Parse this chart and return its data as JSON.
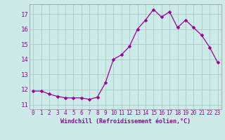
{
  "x": [
    0,
    1,
    2,
    3,
    4,
    5,
    6,
    7,
    8,
    9,
    10,
    11,
    12,
    13,
    14,
    15,
    16,
    17,
    18,
    19,
    20,
    21,
    22,
    23
  ],
  "y": [
    11.9,
    11.9,
    11.7,
    11.55,
    11.45,
    11.45,
    11.45,
    11.35,
    11.5,
    12.45,
    14.0,
    14.3,
    14.85,
    16.0,
    16.6,
    17.3,
    16.8,
    17.15,
    16.1,
    16.6,
    16.1,
    15.6,
    14.8,
    13.8
  ],
  "line_color": "#990099",
  "marker": "D",
  "markersize": 2.5,
  "bg_color": "#cceae7",
  "grid_color": "#aacccc",
  "ylabel_ticks": [
    11,
    12,
    13,
    14,
    15,
    16,
    17
  ],
  "xtick_labels": [
    "0",
    "1",
    "2",
    "3",
    "4",
    "5",
    "6",
    "7",
    "8",
    "9",
    "10",
    "11",
    "12",
    "13",
    "14",
    "15",
    "16",
    "17",
    "18",
    "19",
    "20",
    "21",
    "22",
    "23"
  ],
  "ylim": [
    10.7,
    17.65
  ],
  "xlim": [
    -0.5,
    23.5
  ],
  "xlabel": "Windchill (Refroidissement éolien,°C)",
  "xlabel_color": "#990099",
  "xlabel_fontsize": 6.0,
  "tick_color": "#990099",
  "tick_fontsize": 5.5,
  "ytick_fontsize": 6.5,
  "spine_color": "#aaaaaa",
  "linewidth": 0.9
}
